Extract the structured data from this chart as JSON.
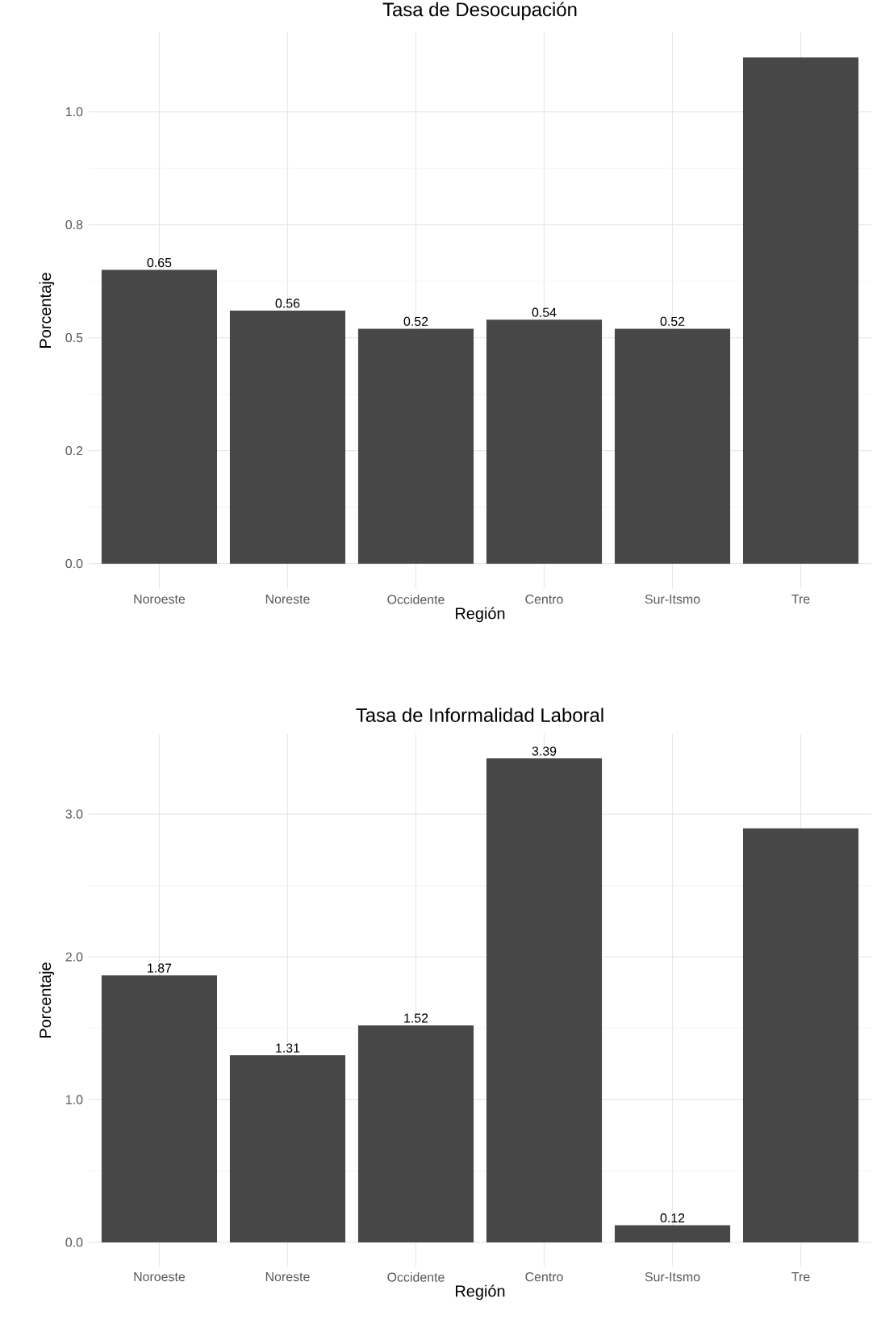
{
  "chart_data": [
    {
      "type": "bar",
      "title": "Tasa de Desocupación",
      "xlabel": "Región",
      "ylabel": "Porcentaje",
      "categories": [
        "Noroeste",
        "Noreste",
        "Occidente",
        "Centro",
        "Sur-Itsmo",
        "Tre"
      ],
      "values": [
        0.65,
        0.56,
        0.52,
        0.54,
        0.52,
        1.12
      ],
      "value_labels": [
        "0.65",
        "0.56",
        "0.52",
        "0.54",
        "0.52",
        null
      ],
      "color": "#474747",
      "ylim": [
        -0.056,
        1.176
      ],
      "yticks": [
        {
          "value": 0,
          "label": "0.0"
        },
        {
          "value": 0.25,
          "label": "0.2"
        },
        {
          "value": 0.5,
          "label": "0.5"
        },
        {
          "value": 0.75,
          "label": "0.8"
        },
        {
          "value": 1.0,
          "label": "1.0"
        }
      ],
      "grid": true
    },
    {
      "type": "bar",
      "title": "Tasa de Informalidad Laboral",
      "xlabel": "Región",
      "ylabel": "Porcentaje",
      "categories": [
        "Noroeste",
        "Noreste",
        "Occidente",
        "Centro",
        "Sur-Itsmo",
        "Tre"
      ],
      "values": [
        1.87,
        1.31,
        1.52,
        3.39,
        0.12,
        2.9
      ],
      "value_labels": [
        "1.87",
        "1.31",
        "1.52",
        "3.39",
        "0.12",
        null
      ],
      "color": "#474747",
      "ylim": [
        -0.17,
        3.56
      ],
      "yticks": [
        {
          "value": 0,
          "label": "0.0"
        },
        {
          "value": 1.0,
          "label": "1.0"
        },
        {
          "value": 2.0,
          "label": "2.0"
        },
        {
          "value": 3.0,
          "label": "3.0"
        }
      ],
      "grid": true
    }
  ]
}
